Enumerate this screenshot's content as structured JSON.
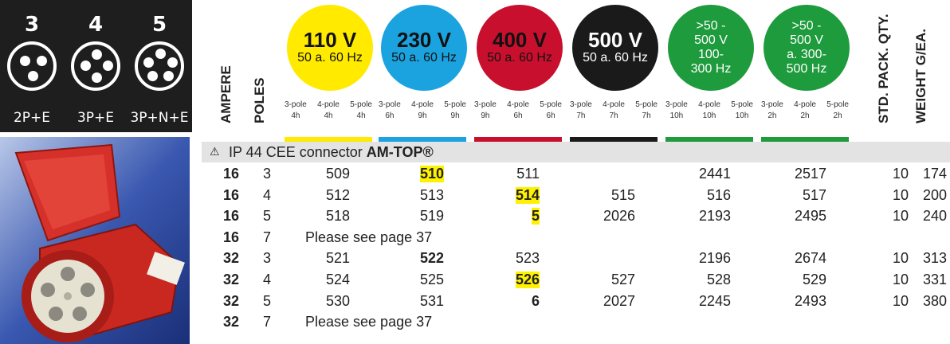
{
  "pin_panel": [
    {
      "poles": "3",
      "label": "2P+E"
    },
    {
      "poles": "4",
      "label": "3P+E"
    },
    {
      "poles": "5",
      "label": "3P+N+E"
    }
  ],
  "headers": {
    "ampere": "AMPERE",
    "poles": "POLES",
    "pack": "STD. PACK. QTY.",
    "weight": "WEIGHT G/EA."
  },
  "voltages": [
    {
      "big": "110 V",
      "l1": "50 a. 60 Hz",
      "l2": "",
      "color": "#ffea00",
      "text": "#111",
      "poles": [
        [
          "3-pole",
          "4h"
        ],
        [
          "4-pole",
          "4h"
        ],
        [
          "5-pole",
          "4h"
        ]
      ]
    },
    {
      "big": "230 V",
      "l1": "50 a. 60 Hz",
      "l2": "",
      "color": "#1ba3e0",
      "text": "#111",
      "poles": [
        [
          "3-pole",
          "6h"
        ],
        [
          "4-pole",
          "9h"
        ],
        [
          "5-pole",
          "9h"
        ]
      ]
    },
    {
      "big": "400 V",
      "l1": "50 a. 60 Hz",
      "l2": "",
      "color": "#c8102e",
      "text": "#111",
      "poles": [
        [
          "3-pole",
          "9h"
        ],
        [
          "4-pole",
          "6h"
        ],
        [
          "5-pole",
          "6h"
        ]
      ]
    },
    {
      "big": "500 V",
      "l1": "50 a. 60 Hz",
      "l2": "",
      "color": "#1a1a1a",
      "text": "#fff",
      "poles": [
        [
          "3-pole",
          "7h"
        ],
        [
          "4-pole",
          "7h"
        ],
        [
          "5-pole",
          "7h"
        ]
      ]
    },
    {
      "big": ">50 -",
      "l1": "500 V",
      "l2": "100-",
      "l3": "300 Hz",
      "color": "#1e9b3c",
      "text": "#fff",
      "poles": [
        [
          "3-pole",
          "10h"
        ],
        [
          "4-pole",
          "10h"
        ],
        [
          "5-pole",
          "10h"
        ]
      ]
    },
    {
      "big": ">50 -",
      "l1": "500 V",
      "l2": "a. 300-",
      "l3": "500 Hz",
      "color": "#1e9b3c",
      "text": "#fff",
      "poles": [
        [
          "3-pole",
          "2h"
        ],
        [
          "4-pole",
          "2h"
        ],
        [
          "5-pole",
          "2h"
        ]
      ]
    }
  ],
  "section": {
    "warn_icon": "warning-triangle-icon",
    "prefix": "IP 44 CEE connector ",
    "product": "AM-TOP®"
  },
  "rows": [
    {
      "amp": "16",
      "poles": "3",
      "v110": "509",
      "v230": "510",
      "v400": "511",
      "v500": "",
      "g1": "2441",
      "g2": "2517",
      "pack": "10",
      "weight": "174",
      "note": ""
    },
    {
      "amp": "16",
      "poles": "4",
      "v110": "512",
      "v230": "513",
      "v400": "514",
      "v500": "515",
      "g1": "516",
      "g2": "517",
      "pack": "10",
      "weight": "200",
      "note": ""
    },
    {
      "amp": "16",
      "poles": "5",
      "v110": "518",
      "v230": "519",
      "v400": "5",
      "v500": "2026",
      "g1": "2193",
      "g2": "2495",
      "pack": "10",
      "weight": "240",
      "note": ""
    },
    {
      "amp": "16",
      "poles": "7",
      "note": "Please see page 37"
    },
    {
      "amp": "32",
      "poles": "3",
      "v110": "521",
      "v230": "522",
      "v400": "523",
      "v500": "",
      "g1": "2196",
      "g2": "2674",
      "pack": "10",
      "weight": "313",
      "note": ""
    },
    {
      "amp": "32",
      "poles": "4",
      "v110": "524",
      "v230": "525",
      "v400": "526",
      "v500": "527",
      "g1": "528",
      "g2": "529",
      "pack": "10",
      "weight": "331",
      "note": ""
    },
    {
      "amp": "32",
      "poles": "5",
      "v110": "530",
      "v230": "531",
      "v400": "6",
      "v500": "2027",
      "g1": "2245",
      "g2": "2493",
      "pack": "10",
      "weight": "380",
      "note": ""
    },
    {
      "amp": "32",
      "poles": "7",
      "note": "Please see page 37"
    }
  ],
  "highlight_color": "#fff200"
}
